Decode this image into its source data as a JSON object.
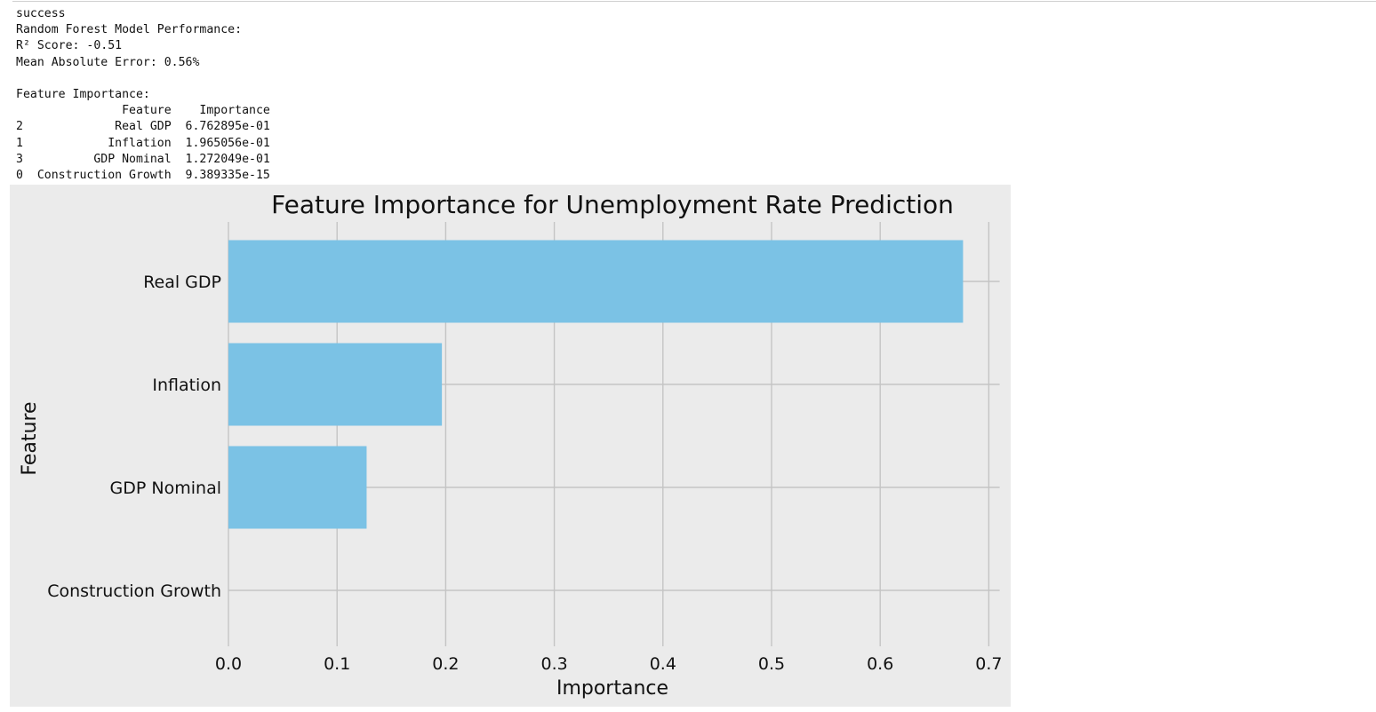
{
  "console": {
    "lines": [
      "success",
      "Random Forest Model Performance:",
      "R² Score: -0.51",
      "Mean Absolute Error: 0.56%",
      "",
      "Feature Importance:",
      "               Feature    Importance",
      "2             Real GDP  6.762895e-01",
      "1            Inflation  1.965056e-01",
      "3          GDP Nominal  1.272049e-01",
      "0  Construction Growth  9.389335e-15"
    ]
  },
  "chart_data": {
    "type": "bar",
    "orientation": "horizontal",
    "title": "Feature Importance for Unemployment Rate Prediction",
    "xlabel": "Importance",
    "ylabel": "Feature",
    "categories": [
      "Real GDP",
      "Inflation",
      "GDP Nominal",
      "Construction Growth"
    ],
    "values": [
      0.6762895,
      0.1965056,
      0.1272049,
      9.389335e-15
    ],
    "xlim": [
      0,
      0.71
    ],
    "xticks": [
      "0.0",
      "0.1",
      "0.2",
      "0.3",
      "0.4",
      "0.5",
      "0.6",
      "0.7"
    ],
    "grid": true,
    "bar_color": "#7bc2e5",
    "background_color": "#ebebeb",
    "grid_color": "#c4c4c4"
  }
}
